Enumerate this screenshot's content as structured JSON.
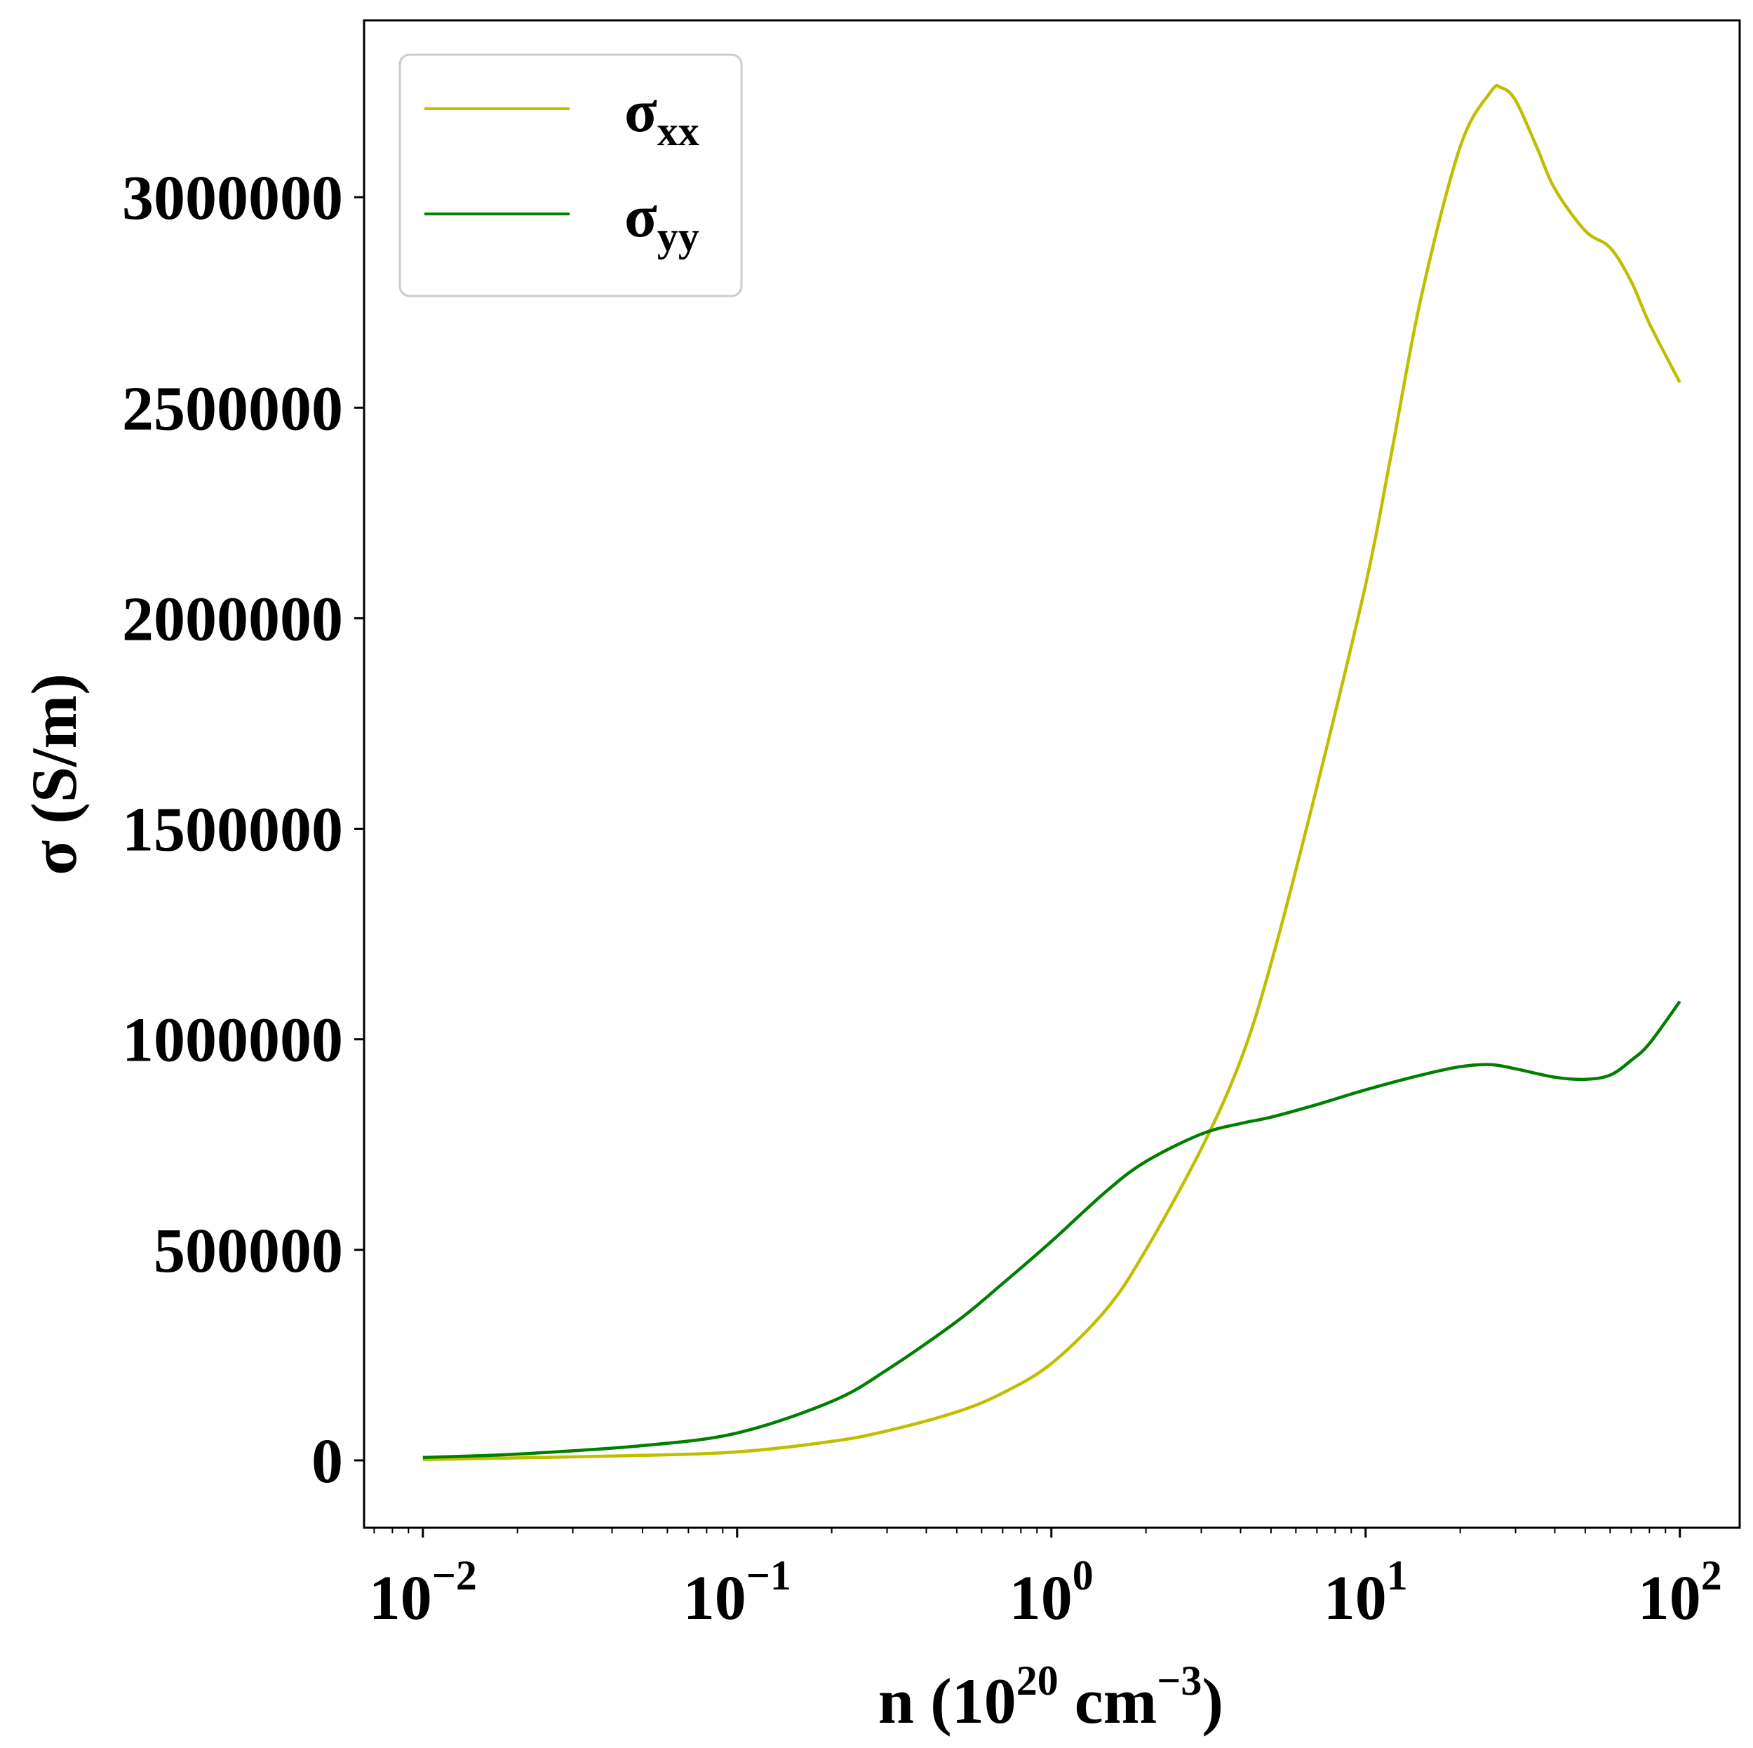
{
  "chart_data": {
    "type": "line",
    "xlabel": {
      "base": "n (10",
      "sup1": "20",
      "mid": " cm",
      "sup2": "−3",
      "end": ")"
    },
    "ylabel": "σ (S/m)",
    "xscale": "log",
    "xlim": [
      0.0065,
      155
    ],
    "ylim": [
      -160000,
      3420000
    ],
    "x_ticks": [
      {
        "value": 0.01,
        "base": "10",
        "exp": "−2"
      },
      {
        "value": 0.1,
        "base": "10",
        "exp": "−1"
      },
      {
        "value": 1,
        "base": "10",
        "exp": "0"
      },
      {
        "value": 10,
        "base": "10",
        "exp": "1"
      },
      {
        "value": 100,
        "base": "10",
        "exp": "2"
      }
    ],
    "y_ticks": [
      {
        "value": 0,
        "label": "0"
      },
      {
        "value": 500000,
        "label": "500000"
      },
      {
        "value": 1000000,
        "label": "1000000"
      },
      {
        "value": 1500000,
        "label": "1500000"
      },
      {
        "value": 2000000,
        "label": "2000000"
      },
      {
        "value": 2500000,
        "label": "2500000"
      },
      {
        "value": 3000000,
        "label": "3000000"
      }
    ],
    "grid": false,
    "legend_position": "top-left",
    "series": [
      {
        "symbol": "σ",
        "subscript": "xx",
        "color": "#bfbf00",
        "x": [
          0.01,
          0.02,
          0.05,
          0.1,
          0.2,
          0.3,
          0.5,
          0.7,
          1.0,
          1.5,
          2.0,
          3.0,
          4.0,
          5.0,
          7.0,
          10,
          12,
          15,
          20,
          25,
          27,
          30,
          35,
          40,
          50,
          60,
          70,
          80,
          100
        ],
        "values": [
          2000,
          6000,
          12000,
          20000,
          45000,
          70000,
          115000,
          160000,
          230000,
          360000,
          500000,
          740000,
          950000,
          1180000,
          1600000,
          2080000,
          2380000,
          2760000,
          3120000,
          3250000,
          3260000,
          3230000,
          3120000,
          3020000,
          2920000,
          2880000,
          2800000,
          2700000,
          2560000
        ]
      },
      {
        "symbol": "σ",
        "subscript": "yy",
        "color": "#007f00",
        "x": [
          0.01,
          0.02,
          0.05,
          0.1,
          0.2,
          0.3,
          0.5,
          0.7,
          1.0,
          1.5,
          2.0,
          3.0,
          4.0,
          5.0,
          7.0,
          10,
          15,
          20,
          25,
          30,
          40,
          50,
          60,
          70,
          80,
          100
        ],
        "values": [
          7000,
          15000,
          35000,
          65000,
          140000,
          215000,
          330000,
          420000,
          520000,
          640000,
          710000,
          775000,
          800000,
          815000,
          845000,
          880000,
          915000,
          935000,
          940000,
          930000,
          910000,
          905000,
          915000,
          950000,
          990000,
          1090000
        ]
      }
    ]
  }
}
